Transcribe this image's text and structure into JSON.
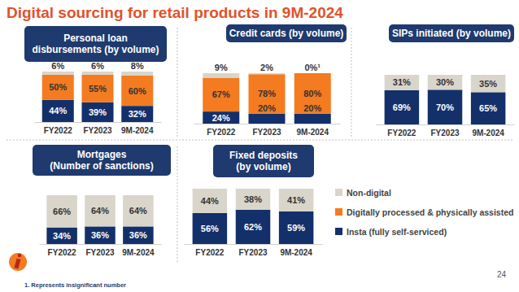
{
  "title": "Digital sourcing for retail products in 9M-2024",
  "footnote": "1. Represents insignificant number",
  "page_number": 24,
  "chart_data": [
    {
      "type": "bar",
      "title": "Personal loan\ndisbursements (by volume)",
      "stacked": true,
      "data_labels": true,
      "tick_labels": "x",
      "categories": [
        "FY2022",
        "FY2023",
        "9M-2024"
      ],
      "ylim": [
        0,
        100
      ],
      "series": [
        {
          "name": "Insta (fully self-serviced)",
          "color": "#14306a",
          "values": [
            44,
            39,
            32
          ],
          "value_labels": [
            "44%",
            "39%",
            "32%"
          ]
        },
        {
          "name": "Digitally processed & physically assisted",
          "color": "#f47b20",
          "values": [
            50,
            55,
            60
          ],
          "value_labels": [
            "50%",
            "55%",
            "60%"
          ]
        },
        {
          "name": "Non-digital",
          "color": "#d9d5cb",
          "values": [
            6,
            6,
            8
          ],
          "value_labels": [
            "6%",
            "6%",
            "8%"
          ]
        }
      ]
    },
    {
      "type": "bar",
      "title": "Credit cards (by volume)",
      "stacked": true,
      "data_labels": true,
      "tick_labels": "x",
      "categories": [
        "FY2022",
        "FY2023",
        "9M-2024"
      ],
      "ylim": [
        0,
        100
      ],
      "series": [
        {
          "name": "Insta (fully self-serviced)",
          "color": "#14306a",
          "values": [
            24,
            20,
            20
          ],
          "value_labels": [
            "24%",
            "20%",
            "20%"
          ]
        },
        {
          "name": "Digitally processed & physically assisted",
          "color": "#f47b20",
          "values": [
            67,
            78,
            80
          ],
          "value_labels": [
            "67%",
            "78%",
            "80%"
          ]
        },
        {
          "name": "Non-digital",
          "color": "#d9d5cb",
          "values": [
            9,
            2,
            0
          ],
          "value_labels": [
            "9%",
            "2%",
            "0%¹"
          ]
        }
      ]
    },
    {
      "type": "bar",
      "title": "SIPs initiated (by volume)",
      "stacked": true,
      "data_labels": true,
      "tick_labels": "x",
      "categories": [
        "FY2022",
        "FY2023",
        "9M-2024"
      ],
      "ylim": [
        0,
        100
      ],
      "series": [
        {
          "name": "Insta (fully self-serviced)",
          "color": "#14306a",
          "values": [
            69,
            70,
            65
          ],
          "value_labels": [
            "69%",
            "70%",
            "65%"
          ]
        },
        {
          "name": "Non-digital",
          "color": "#d9d5cb",
          "values": [
            31,
            30,
            35
          ],
          "value_labels": [
            "31%",
            "30%",
            "35%"
          ]
        }
      ]
    },
    {
      "type": "bar",
      "title": "Mortgages\n(Number of sanctions)",
      "stacked": true,
      "data_labels": true,
      "tick_labels": "x",
      "categories": [
        "FY2022",
        "FY2023",
        "9M-2024"
      ],
      "ylim": [
        0,
        100
      ],
      "series": [
        {
          "name": "Insta (fully self-serviced)",
          "color": "#14306a",
          "values": [
            34,
            36,
            36
          ],
          "value_labels": [
            "34%",
            "36%",
            "36%"
          ]
        },
        {
          "name": "Non-digital",
          "color": "#d9d5cb",
          "values": [
            66,
            64,
            64
          ],
          "value_labels": [
            "66%",
            "64%",
            "64%"
          ]
        }
      ]
    },
    {
      "type": "bar",
      "title": "Fixed deposits\n(by volume)",
      "stacked": true,
      "data_labels": true,
      "tick_labels": "x",
      "categories": [
        "FY2022",
        "FY2023",
        "9M-2024"
      ],
      "ylim": [
        0,
        100
      ],
      "series": [
        {
          "name": "Insta (fully self-serviced)",
          "color": "#14306a",
          "values": [
            56,
            62,
            59
          ],
          "value_labels": [
            "56%",
            "62%",
            "59%"
          ]
        },
        {
          "name": "Non-digital",
          "color": "#d9d5cb",
          "values": [
            44,
            38,
            41
          ],
          "value_labels": [
            "44%",
            "38%",
            "41%"
          ]
        }
      ]
    }
  ]
}
